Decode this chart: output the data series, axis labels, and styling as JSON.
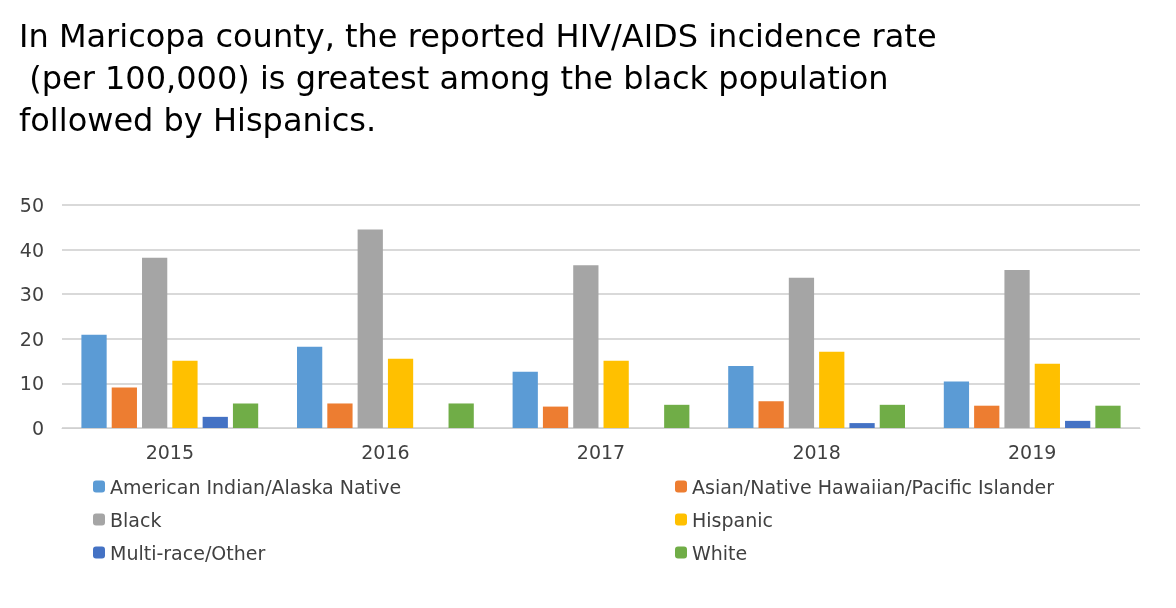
{
  "chart_data": {
    "type": "bar",
    "title": "In Maricopa county, the reported HIV/AIDS incidence rate (per 100,000) is greatest among the black population followed by Hispanics.",
    "categories": [
      "2015",
      "2016",
      "2017",
      "2018",
      "2019"
    ],
    "series": [
      {
        "name": "American Indian/Alaska Native",
        "color": "#5b9bd5",
        "values": [
          20.9,
          18.2,
          12.6,
          13.9,
          10.4
        ]
      },
      {
        "name": "Asian/Native Hawaiian/Pacific Islander",
        "color": "#ed7d31",
        "values": [
          9.1,
          5.5,
          4.8,
          6.0,
          5.0
        ]
      },
      {
        "name": "Black",
        "color": "#a5a5a5",
        "values": [
          38.2,
          44.5,
          36.5,
          33.7,
          35.4
        ]
      },
      {
        "name": "Hispanic",
        "color": "#ffc000",
        "values": [
          15.1,
          15.5,
          15.1,
          17.1,
          14.4
        ]
      },
      {
        "name": "Multi-race/Other",
        "color": "#4472c4",
        "values": [
          2.5,
          null,
          null,
          1.1,
          1.6
        ]
      },
      {
        "name": "White",
        "color": "#70ad47",
        "values": [
          5.5,
          5.5,
          5.2,
          5.2,
          5.0
        ]
      }
    ],
    "ylim": [
      0,
      50
    ],
    "yticks": [
      0,
      10,
      20,
      30,
      40,
      50
    ],
    "grid": "y",
    "legend": "bottom"
  }
}
